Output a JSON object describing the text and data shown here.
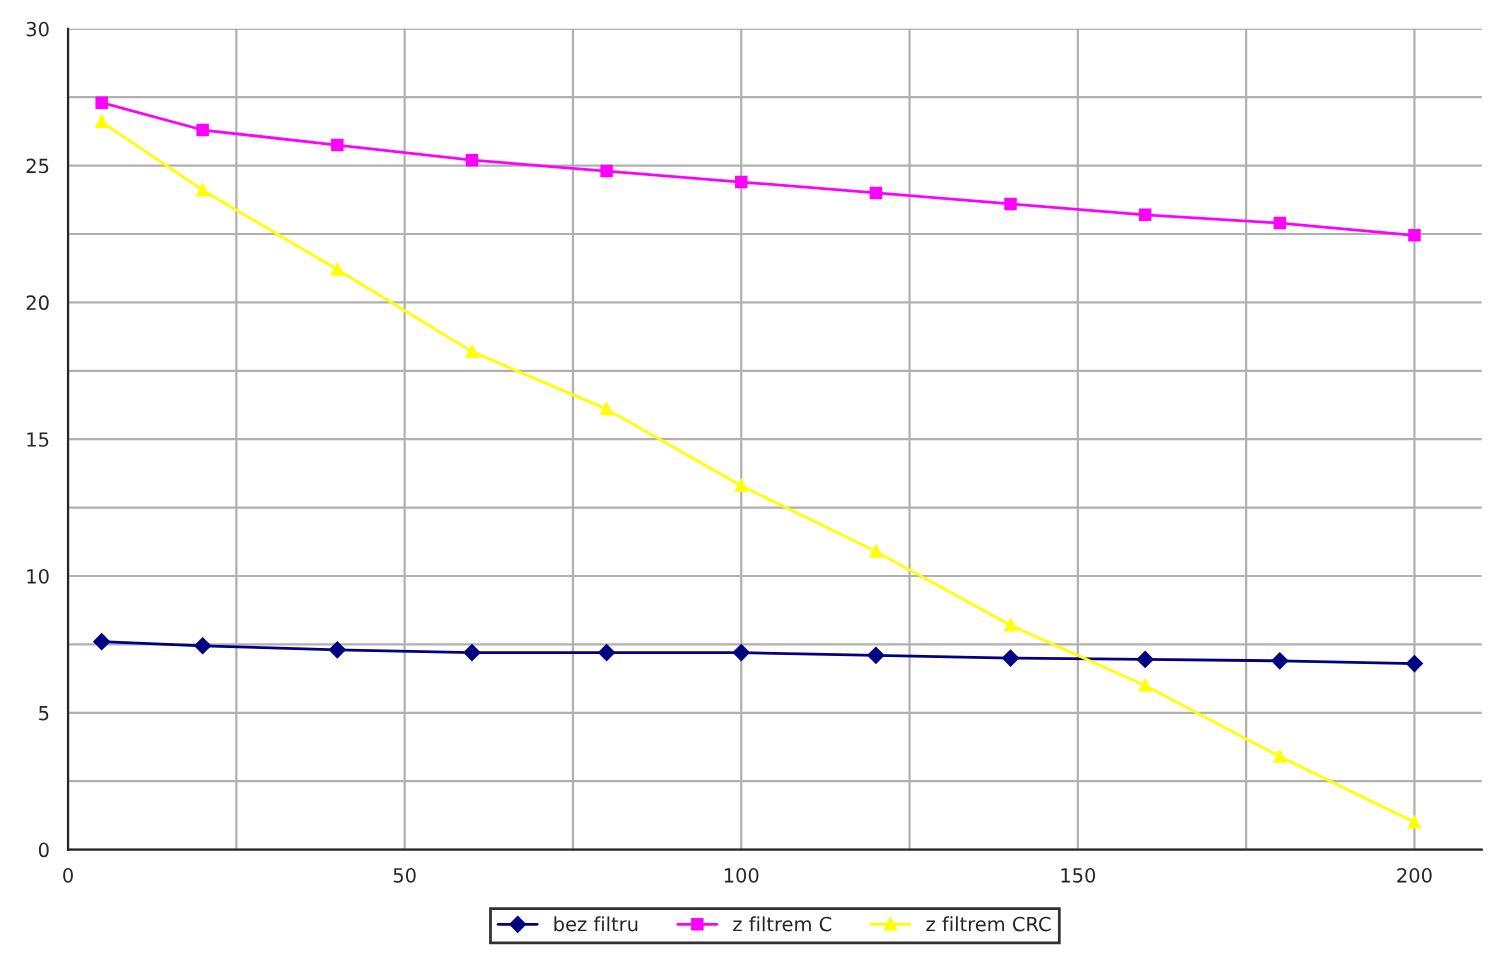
{
  "chart_data": {
    "type": "line",
    "x": [
      5,
      20,
      40,
      60,
      80,
      100,
      120,
      140,
      160,
      180,
      200
    ],
    "series": [
      {
        "name": "bez filtru",
        "color": "#000080",
        "marker": "diamond",
        "values": [
          7.6,
          7.45,
          7.3,
          7.2,
          7.2,
          7.2,
          7.1,
          7.0,
          6.95,
          6.9,
          6.8
        ]
      },
      {
        "name": "z filtrem C",
        "color": "#ff00ff",
        "marker": "square",
        "values": [
          27.3,
          26.3,
          25.75,
          25.2,
          24.8,
          24.4,
          24.0,
          23.6,
          23.2,
          22.9,
          22.45
        ]
      },
      {
        "name": "z filtrem CRC",
        "color": "#ffff00",
        "marker": "triangle",
        "values": [
          26.6,
          24.1,
          21.2,
          18.2,
          16.1,
          13.3,
          10.9,
          8.2,
          6.0,
          3.4,
          1.0
        ]
      }
    ],
    "xlim": [
      0,
      210
    ],
    "ylim": [
      0,
      30
    ],
    "xticks": [
      0,
      {
        "value": 25,
        "label": null
      },
      50,
      {
        "value": 75,
        "label": null
      },
      100,
      {
        "value": 125,
        "label": null
      },
      150,
      {
        "value": 175,
        "label": null
      },
      200
    ],
    "yticks": [
      0,
      {
        "value": 2.5,
        "label": null
      },
      5,
      {
        "value": 7.5,
        "label": null
      },
      10,
      {
        "value": 12.5,
        "label": null
      },
      15,
      {
        "value": 17.5,
        "label": null
      },
      20,
      {
        "value": 22.5,
        "label": null
      },
      25,
      {
        "value": 27.5,
        "label": null
      },
      30
    ],
    "grid": true,
    "legend": "bottom",
    "line_style": "solid"
  }
}
